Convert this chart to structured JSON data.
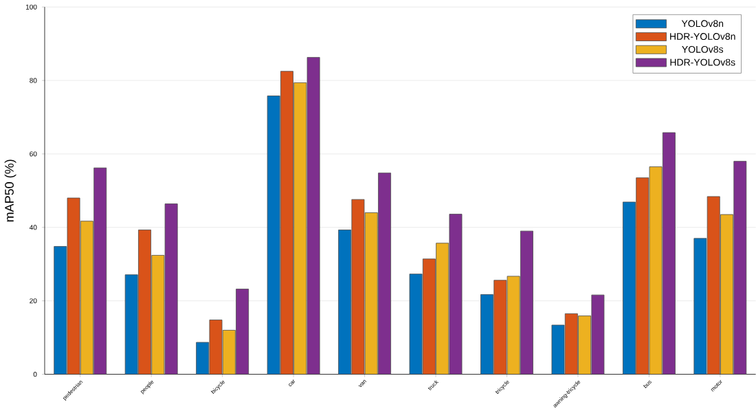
{
  "chart_data": {
    "type": "bar",
    "ylabel": "mAP50 (%)",
    "categories": [
      "pedestrian",
      "people",
      "bicycle",
      "car",
      "van",
      "truck",
      "tricycle",
      "awning-tricycle",
      "bus",
      "motor"
    ],
    "series": [
      {
        "name": "YOLOv8n",
        "color": "#0072bd",
        "values": [
          34.8,
          27.1,
          8.7,
          75.8,
          39.3,
          27.3,
          21.7,
          13.4,
          46.9,
          37.0
        ]
      },
      {
        "name": "HDR-YOLOv8n",
        "color": "#d95319",
        "values": [
          48.0,
          39.3,
          14.8,
          82.5,
          47.6,
          31.4,
          25.6,
          16.5,
          53.5,
          48.4
        ]
      },
      {
        "name": "YOLOv8s",
        "color": "#edb120",
        "values": [
          41.7,
          32.4,
          12.0,
          79.4,
          44.0,
          35.7,
          26.7,
          15.9,
          56.5,
          43.5
        ]
      },
      {
        "name": "HDR-YOLOv8s",
        "color": "#7e2f8e",
        "values": [
          56.2,
          46.4,
          23.2,
          86.3,
          54.8,
          43.6,
          39.0,
          21.6,
          65.8,
          58.0
        ]
      }
    ],
    "ylim": [
      0,
      100
    ],
    "yticks": [
      0,
      20,
      40,
      60,
      80,
      100
    ],
    "grid": "y",
    "legend": "top right"
  }
}
